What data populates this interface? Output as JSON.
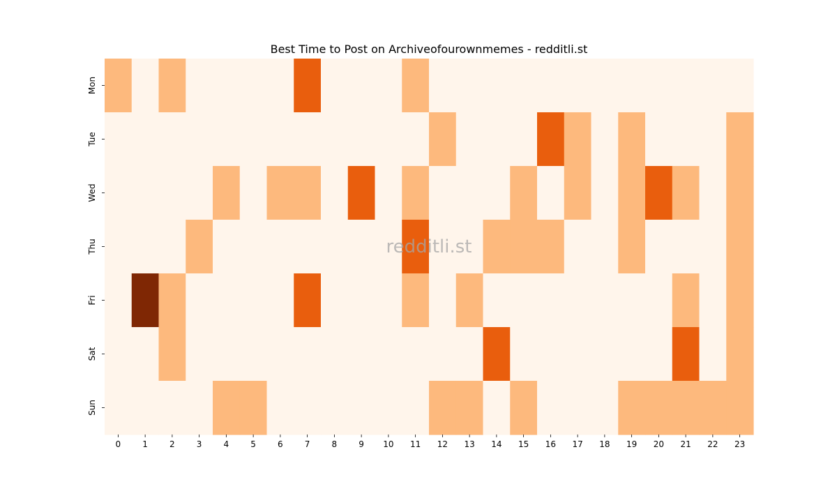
{
  "chart_data": {
    "type": "heatmap",
    "title": "Best Time to Post on Archiveofourownmemes - redditli.st",
    "xlabel": "",
    "ylabel": "",
    "x_categories": [
      "0",
      "1",
      "2",
      "3",
      "4",
      "5",
      "6",
      "7",
      "8",
      "9",
      "10",
      "11",
      "12",
      "13",
      "14",
      "15",
      "16",
      "17",
      "18",
      "19",
      "20",
      "21",
      "22",
      "23"
    ],
    "y_categories": [
      "Mon",
      "Tue",
      "Wed",
      "Thu",
      "Fri",
      "Sat",
      "Sun"
    ],
    "values": [
      [
        1,
        0,
        1,
        0,
        0,
        0,
        0,
        2,
        0,
        0,
        0,
        1,
        0,
        0,
        0,
        0,
        0,
        0,
        0,
        0,
        0,
        0,
        0,
        0
      ],
      [
        0,
        0,
        0,
        0,
        0,
        0,
        0,
        0,
        0,
        0,
        0,
        0,
        1,
        0,
        0,
        0,
        2,
        1,
        0,
        1,
        0,
        0,
        0,
        1
      ],
      [
        0,
        0,
        0,
        0,
        1,
        0,
        1,
        1,
        0,
        2,
        0,
        1,
        0,
        0,
        0,
        1,
        0,
        1,
        0,
        1,
        2,
        1,
        0,
        1
      ],
      [
        0,
        0,
        0,
        1,
        0,
        0,
        0,
        0,
        0,
        0,
        0,
        2,
        0,
        0,
        1,
        1,
        1,
        0,
        0,
        1,
        0,
        0,
        0,
        1
      ],
      [
        0,
        3,
        1,
        0,
        0,
        0,
        0,
        2,
        0,
        0,
        0,
        1,
        0,
        1,
        0,
        0,
        0,
        0,
        0,
        0,
        0,
        1,
        0,
        1
      ],
      [
        0,
        0,
        1,
        0,
        0,
        0,
        0,
        0,
        0,
        0,
        0,
        0,
        0,
        0,
        2,
        0,
        0,
        0,
        0,
        0,
        0,
        2,
        0,
        1
      ],
      [
        0,
        0,
        0,
        0,
        1,
        1,
        0,
        0,
        0,
        0,
        0,
        0,
        1,
        1,
        0,
        1,
        0,
        0,
        0,
        1,
        1,
        1,
        1,
        1
      ]
    ],
    "colormap": [
      "#fff5eb",
      "#fdb97d",
      "#e95e0d",
      "#7f2704"
    ],
    "colorbar": false,
    "grid": false,
    "watermark": "redditli.st"
  }
}
